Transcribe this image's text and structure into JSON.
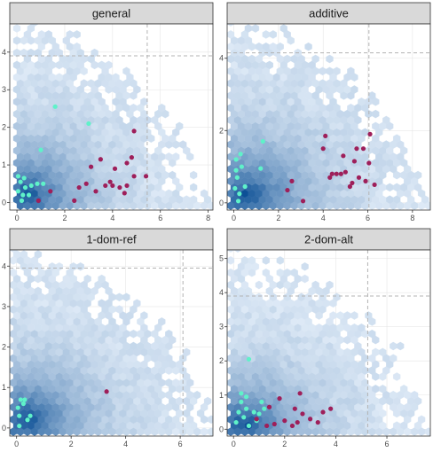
{
  "colors": {
    "hex_light": "#dde9f6",
    "hex_dark": "#0b4f95",
    "outlier_point": "#9e1f5a",
    "highlight_point": "#5ff2c9",
    "threshold_line": "#b3b3b3",
    "panel_border": "#333333",
    "strip_fill": "#d9d9d9",
    "grid_major": "#e6e6e6"
  },
  "chart_data": [
    {
      "type": "scatter",
      "title": "general",
      "xlim": [
        -0.3,
        8.2
      ],
      "ylim": [
        -0.2,
        4.75
      ],
      "xticks": [
        0,
        2,
        4,
        6,
        8
      ],
      "yticks": [
        0,
        1,
        2,
        3,
        4
      ],
      "threshold_x": 5.45,
      "threshold_y": 3.9,
      "density": {
        "center": [
          0.45,
          0.2
        ],
        "xmax": 7.6,
        "ymax": 4.6,
        "spread": [
          1.7,
          0.95
        ]
      },
      "outlier_points": [
        [
          0.9,
          0.05
        ],
        [
          1.4,
          0.3
        ],
        [
          2.4,
          0.05
        ],
        [
          2.6,
          0.4
        ],
        [
          2.9,
          0.5
        ],
        [
          3.1,
          0.95
        ],
        [
          3.3,
          0.3
        ],
        [
          3.5,
          1.15
        ],
        [
          3.7,
          0.45
        ],
        [
          3.9,
          0.55
        ],
        [
          4.0,
          0.45
        ],
        [
          4.1,
          0.9
        ],
        [
          4.3,
          0.4
        ],
        [
          4.5,
          0.25
        ],
        [
          4.6,
          0.45
        ],
        [
          4.6,
          1.05
        ],
        [
          4.8,
          1.2
        ],
        [
          4.9,
          1.9
        ],
        [
          4.9,
          0.7
        ],
        [
          5.4,
          0.7
        ]
      ],
      "highlight_points": [
        [
          0.05,
          0.3
        ],
        [
          0.15,
          0.55
        ],
        [
          0.25,
          0.2
        ],
        [
          0.3,
          0.65
        ],
        [
          0.35,
          0.4
        ],
        [
          0.5,
          0.2
        ],
        [
          0.6,
          0.45
        ],
        [
          0.85,
          0.5
        ],
        [
          1.1,
          0.5
        ],
        [
          0.05,
          0.7
        ],
        [
          0.2,
          0.05
        ],
        [
          1.6,
          2.55
        ],
        [
          1.0,
          1.4
        ],
        [
          3.0,
          2.1
        ]
      ]
    },
    {
      "type": "scatter",
      "title": "additive",
      "xlim": [
        -0.3,
        8.8
      ],
      "ylim": [
        -0.2,
        4.95
      ],
      "xticks": [
        0,
        2,
        4,
        6,
        8
      ],
      "yticks": [
        0,
        2,
        4
      ],
      "threshold_x": 6.05,
      "threshold_y": 4.15,
      "density": {
        "center": [
          0.6,
          0.2
        ],
        "xmax": 8.4,
        "ymax": 4.8,
        "spread": [
          2.0,
          1.1
        ]
      },
      "outlier_points": [
        [
          2.4,
          0.35
        ],
        [
          2.6,
          0.6
        ],
        [
          3.1,
          0.05
        ],
        [
          4.0,
          1.5
        ],
        [
          4.1,
          1.85
        ],
        [
          4.3,
          0.7
        ],
        [
          4.4,
          0.8
        ],
        [
          4.6,
          0.8
        ],
        [
          4.8,
          0.8
        ],
        [
          4.9,
          1.3
        ],
        [
          5.0,
          0.85
        ],
        [
          5.2,
          0.45
        ],
        [
          5.3,
          0.55
        ],
        [
          5.4,
          1.15
        ],
        [
          5.5,
          1.5
        ],
        [
          5.6,
          0.7
        ],
        [
          5.8,
          1.5
        ],
        [
          5.9,
          0.6
        ],
        [
          6.05,
          1.1
        ],
        [
          6.3,
          0.5
        ],
        [
          6.1,
          1.9
        ]
      ],
      "highlight_points": [
        [
          0.05,
          0.4
        ],
        [
          0.15,
          0.7
        ],
        [
          0.25,
          0.25
        ],
        [
          0.35,
          1.0
        ],
        [
          0.1,
          1.2
        ],
        [
          0.3,
          1.35
        ],
        [
          0.5,
          0.45
        ],
        [
          0.2,
          0.05
        ],
        [
          1.2,
          0.95
        ],
        [
          1.3,
          1.7
        ],
        [
          0.1,
          0.9
        ]
      ]
    },
    {
      "type": "scatter",
      "title": "1-dom-ref",
      "xlim": [
        -0.25,
        7.2
      ],
      "ylim": [
        -0.2,
        4.4
      ],
      "xticks": [
        0,
        2,
        4,
        6
      ],
      "yticks": [
        0,
        1,
        2,
        3,
        4
      ],
      "threshold_x": 6.1,
      "threshold_y": 3.95,
      "density": {
        "center": [
          0.35,
          0.2
        ],
        "xmax": 7.0,
        "ymax": 4.3,
        "spread": [
          1.6,
          0.9
        ]
      },
      "outlier_points": [
        [
          3.3,
          0.9
        ]
      ],
      "highlight_points": [
        [
          0.05,
          0.5
        ],
        [
          0.15,
          0.7
        ],
        [
          0.25,
          0.6
        ],
        [
          0.3,
          0.7
        ],
        [
          0.1,
          0.3
        ],
        [
          0.4,
          0.2
        ],
        [
          0.5,
          0.3
        ],
        [
          0.1,
          0.05
        ]
      ]
    },
    {
      "type": "scatter",
      "title": "2-dom-alt",
      "xlim": [
        -0.25,
        7.7
      ],
      "ylim": [
        -0.2,
        5.25
      ],
      "xticks": [
        0,
        2,
        4,
        6
      ],
      "yticks": [
        0,
        1,
        2,
        3,
        4,
        5
      ],
      "threshold_x": 5.25,
      "threshold_y": 3.9,
      "density": {
        "center": [
          0.45,
          0.15
        ],
        "xmax": 7.4,
        "ymax": 5.0,
        "spread": [
          1.6,
          0.95
        ]
      },
      "outlier_points": [
        [
          0.9,
          0.3
        ],
        [
          1.3,
          0.1
        ],
        [
          1.6,
          0.15
        ],
        [
          1.4,
          0.65
        ],
        [
          1.8,
          0.9
        ],
        [
          2.0,
          0.25
        ],
        [
          2.3,
          0.1
        ],
        [
          2.4,
          0.6
        ],
        [
          2.5,
          0.2
        ],
        [
          2.6,
          1.05
        ],
        [
          2.7,
          0.45
        ],
        [
          3.0,
          0.3
        ],
        [
          3.3,
          0.2
        ],
        [
          3.5,
          0.5
        ],
        [
          3.8,
          0.6
        ]
      ],
      "highlight_points": [
        [
          0.1,
          0.2
        ],
        [
          0.2,
          0.5
        ],
        [
          0.3,
          0.8
        ],
        [
          0.4,
          0.35
        ],
        [
          0.5,
          0.6
        ],
        [
          0.6,
          0.1
        ],
        [
          0.8,
          0.5
        ],
        [
          0.9,
          0.25
        ],
        [
          1.0,
          0.45
        ],
        [
          1.1,
          0.8
        ],
        [
          1.2,
          0.6
        ],
        [
          0.3,
          1.05
        ],
        [
          0.5,
          0.95
        ],
        [
          0.6,
          2.05
        ]
      ]
    }
  ]
}
